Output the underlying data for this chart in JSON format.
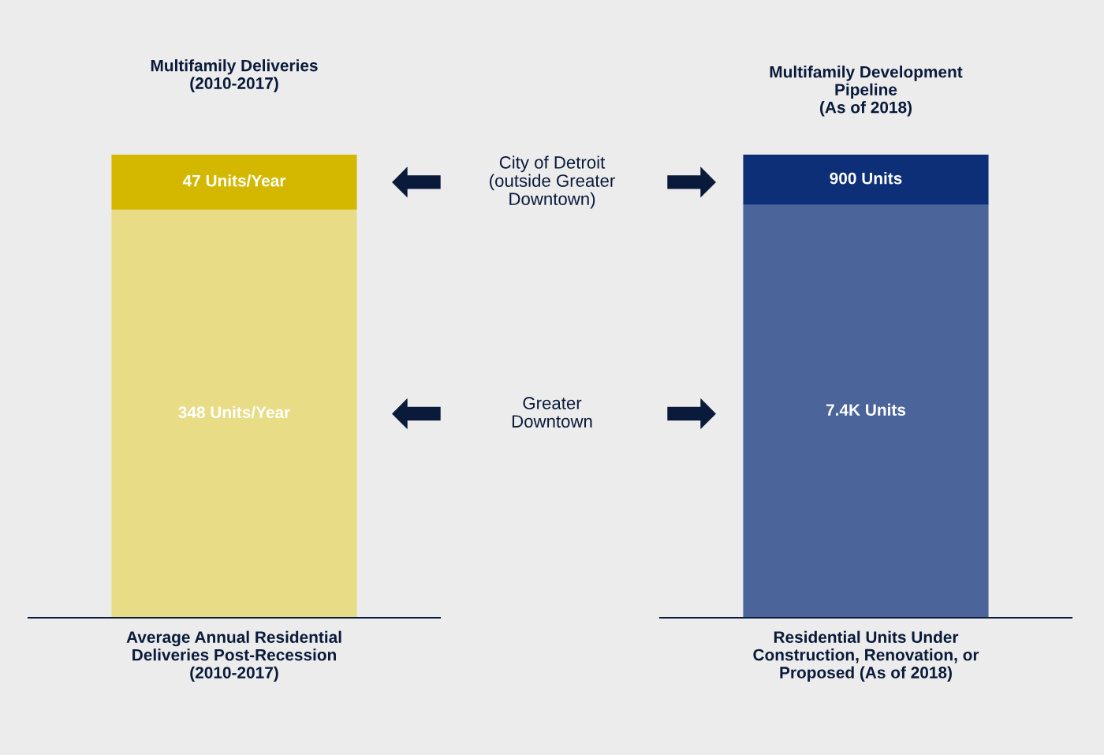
{
  "chart_data": [
    {
      "type": "bar",
      "title": "Multifamily Deliveries\n(2010-2017)",
      "xlabel": "Average Annual Residential\nDeliveries Post-Recession\n(2010-2017)",
      "categories": [
        null
      ],
      "stacked": true,
      "legend": false,
      "series": [
        {
          "name": "Greater\nDowntown",
          "color": "#e8dc86",
          "values": [
            348
          ],
          "value_labels": [
            "348 Units/Year"
          ]
        },
        {
          "name": "City of Detroit\n(outside Greater\nDowntown)",
          "color": "#d4b800",
          "values": [
            47
          ],
          "value_labels": [
            "47 Units/Year"
          ]
        }
      ]
    },
    {
      "type": "bar",
      "title": "Multifamily Development\nPipeline\n(As of 2018)",
      "xlabel": "Residential Units Under\nConstruction, Renovation, or\nProposed (As of 2018)",
      "categories": [
        null
      ],
      "stacked": true,
      "legend": false,
      "series": [
        {
          "color": "#4b659b",
          "values": [
            7400
          ],
          "value_labels": [
            "7.4K Units"
          ]
        },
        {
          "color": "#0d2f78",
          "values": [
            900
          ],
          "value_labels": [
            "900 Units"
          ]
        }
      ]
    }
  ]
}
